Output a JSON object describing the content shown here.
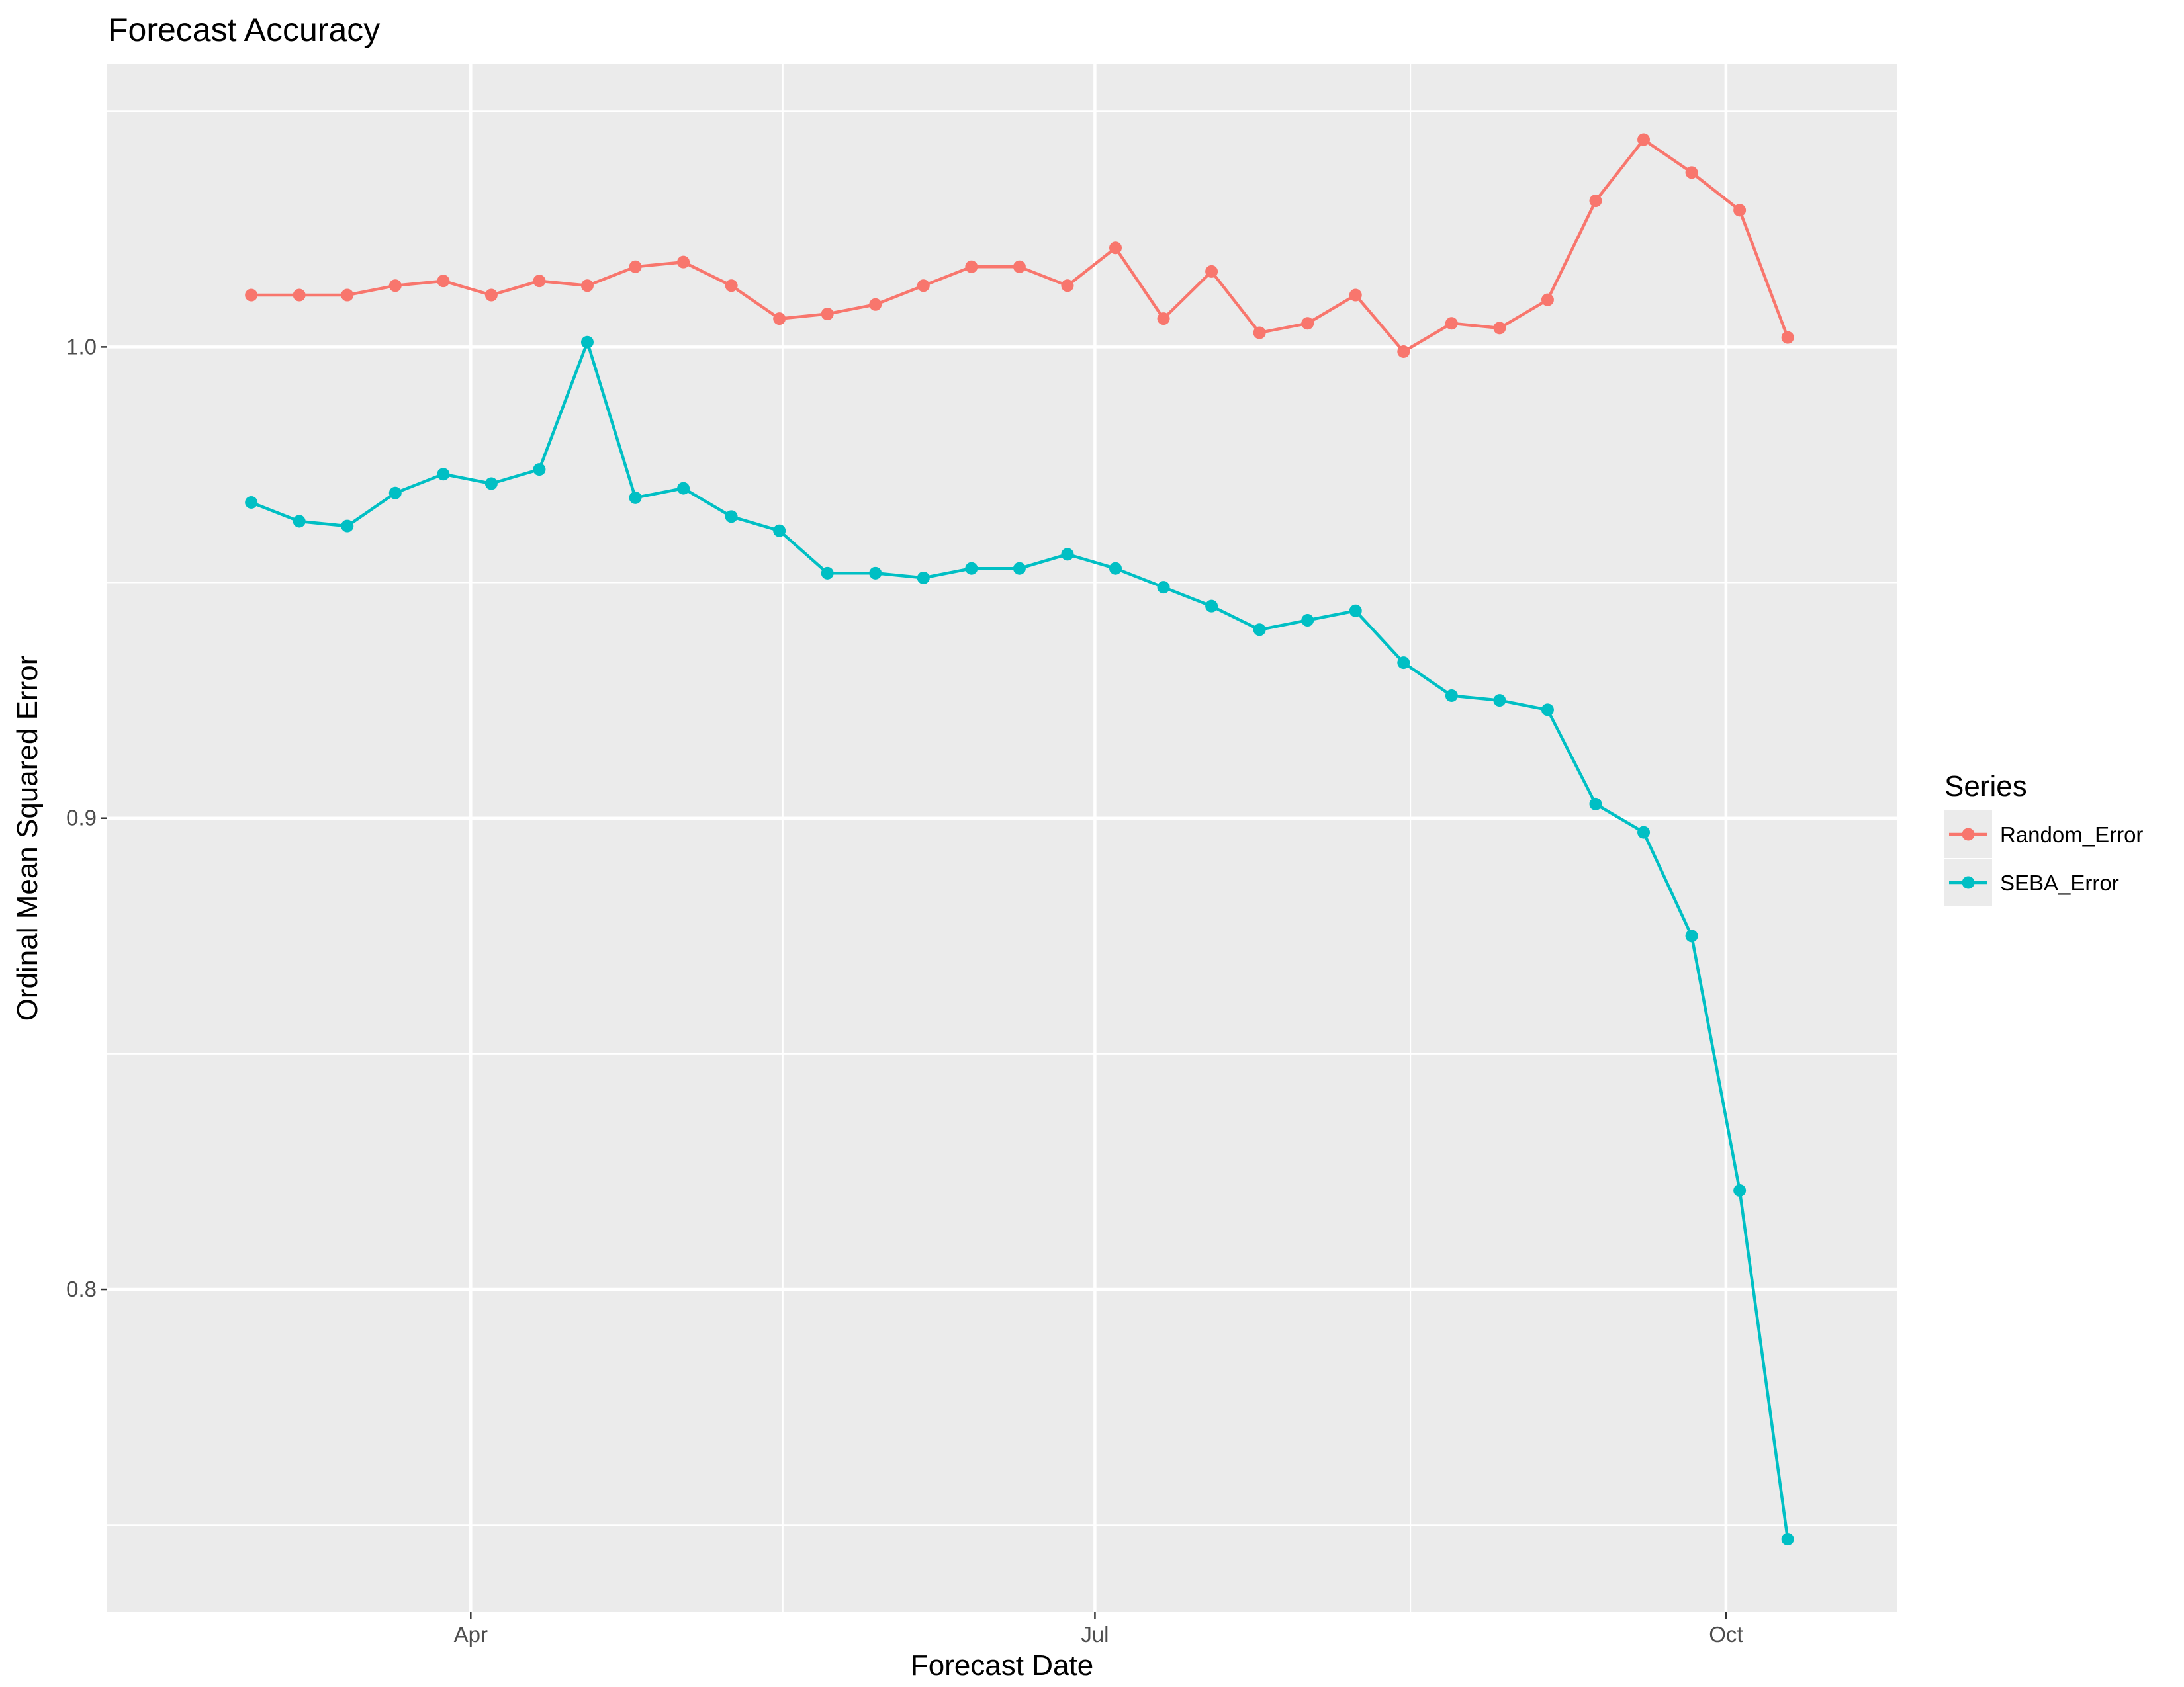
{
  "chart_data": {
    "type": "line",
    "title": "Forecast Accuracy",
    "xlabel": "Forecast Date",
    "ylabel": "Ordinal Mean Squared Error",
    "x_ticks": [
      {
        "label": "Apr",
        "date": "2017-04-01"
      },
      {
        "label": "Jul",
        "date": "2017-07-01"
      },
      {
        "label": "Oct",
        "date": "2017-10-01"
      }
    ],
    "y_ticks": [
      "0.8",
      "0.9",
      "1.0"
    ],
    "y_tick_values": [
      0.8,
      0.9,
      1.0
    ],
    "xlim": [
      "2017-02-07",
      "2017-10-26"
    ],
    "ylim": [
      0.7315,
      1.06
    ],
    "grid": true,
    "legend": {
      "title": "Series",
      "position": "right"
    },
    "x": [
      "2017-02-28",
      "2017-03-07",
      "2017-03-14",
      "2017-03-21",
      "2017-03-28",
      "2017-04-04",
      "2017-04-11",
      "2017-04-18",
      "2017-04-25",
      "2017-05-02",
      "2017-05-09",
      "2017-05-16",
      "2017-05-23",
      "2017-05-30",
      "2017-06-06",
      "2017-06-13",
      "2017-06-20",
      "2017-06-27",
      "2017-07-04",
      "2017-07-11",
      "2017-07-18",
      "2017-07-25",
      "2017-08-01",
      "2017-08-08",
      "2017-08-15",
      "2017-08-22",
      "2017-08-29",
      "2017-09-05",
      "2017-09-12",
      "2017-09-19",
      "2017-09-26",
      "2017-10-03",
      "2017-10-10"
    ],
    "series": [
      {
        "name": "Random_Error",
        "color": "#F8766D",
        "values": [
          1.011,
          1.011,
          1.011,
          1.013,
          1.014,
          1.011,
          1.014,
          1.013,
          1.017,
          1.018,
          1.013,
          1.006,
          1.007,
          1.009,
          1.013,
          1.017,
          1.017,
          1.013,
          1.021,
          1.006,
          1.016,
          1.003,
          1.005,
          1.011,
          0.999,
          1.005,
          1.004,
          1.01,
          1.031,
          1.044,
          1.037,
          1.029,
          1.002
        ]
      },
      {
        "name": "SEBA_Error",
        "color": "#00BFC4",
        "values": [
          0.967,
          0.963,
          0.962,
          0.969,
          0.973,
          0.971,
          0.974,
          1.001,
          0.968,
          0.97,
          0.964,
          0.961,
          0.952,
          0.952,
          0.951,
          0.953,
          0.953,
          0.956,
          0.953,
          0.949,
          0.945,
          0.94,
          0.942,
          0.944,
          0.933,
          0.926,
          0.925,
          0.923,
          0.903,
          0.897,
          0.875,
          0.821,
          0.747
        ]
      }
    ]
  }
}
